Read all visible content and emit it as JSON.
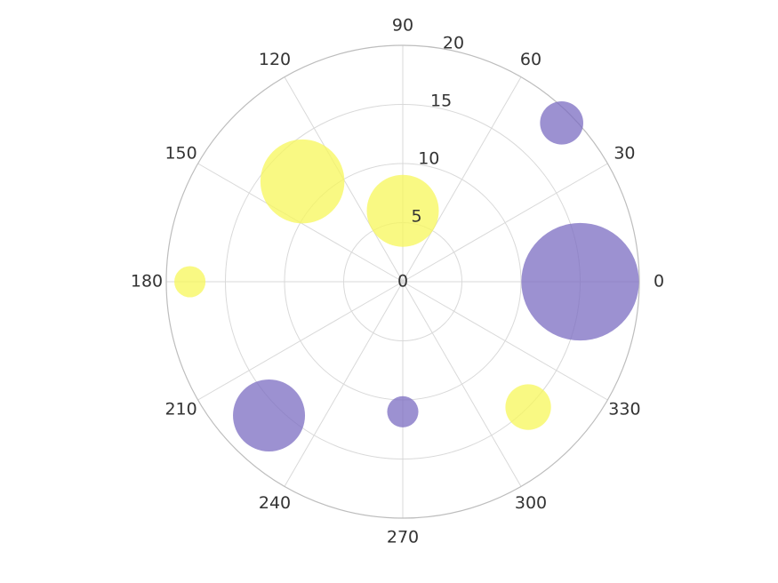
{
  "chart_data": {
    "type": "scatter",
    "subtype": "polar-bubble",
    "title": "",
    "angle_unit": "degrees",
    "angular_ticks": [
      0,
      30,
      60,
      90,
      120,
      150,
      180,
      210,
      240,
      270,
      300,
      330
    ],
    "radial_ticks": [
      0,
      5,
      10,
      15,
      20
    ],
    "rlim": [
      0,
      20
    ],
    "grid": true,
    "colors": {
      "purple": "#7b6cc2",
      "yellow": "#f7f75a",
      "grid": "#d9d9d9",
      "ring": "#bdbdbd",
      "text": "#333333"
    },
    "points": [
      {
        "angle": 0,
        "r": 15,
        "size": 9.8,
        "color": "purple"
      },
      {
        "angle": 45,
        "r": 19,
        "size": 3.6,
        "color": "purple"
      },
      {
        "angle": 90,
        "r": 6,
        "size": 6.0,
        "color": "yellow"
      },
      {
        "angle": 135,
        "r": 12,
        "size": 7.0,
        "color": "yellow"
      },
      {
        "angle": 180,
        "r": 18,
        "size": 2.6,
        "color": "yellow"
      },
      {
        "angle": 225,
        "r": 16,
        "size": 6.0,
        "color": "purple"
      },
      {
        "angle": 270,
        "r": 11,
        "size": 2.6,
        "color": "purple"
      },
      {
        "angle": 315,
        "r": 15,
        "size": 3.8,
        "color": "yellow"
      }
    ]
  }
}
